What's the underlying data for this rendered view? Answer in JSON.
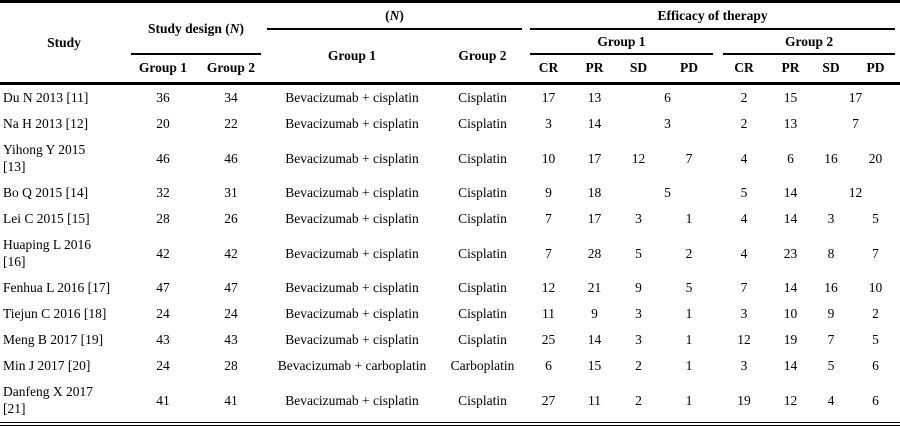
{
  "table": {
    "headers": {
      "study": "Study",
      "study_design": {
        "pre": "Study design (",
        "n": "N",
        "post": ")"
      },
      "n_group": {
        "pre": "(",
        "n": "N",
        "post": ")"
      },
      "efficacy": "Efficacy of therapy",
      "group1": "Group 1",
      "group2": "Group 2",
      "outcome_cols": [
        "CR",
        "PR",
        "SD",
        "PD"
      ]
    },
    "rows": [
      {
        "study": "Du N 2013 [11]",
        "design_g1": "36",
        "design_g2": "34",
        "drug_g1": "Bevacizumab + cisplatin",
        "drug_g2": "Cisplatin",
        "g1": [
          {
            "v": "17"
          },
          {
            "v": "13"
          },
          {
            "v": "6",
            "span": 2
          }
        ],
        "g2": [
          {
            "v": "2"
          },
          {
            "v": "15"
          },
          {
            "v": "17",
            "span": 2
          }
        ]
      },
      {
        "study": "Na H 2013 [12]",
        "design_g1": "20",
        "design_g2": "22",
        "drug_g1": "Bevacizumab + cisplatin",
        "drug_g2": "Cisplatin",
        "g1": [
          {
            "v": "3"
          },
          {
            "v": "14"
          },
          {
            "v": "3",
            "span": 2
          }
        ],
        "g2": [
          {
            "v": "2"
          },
          {
            "v": "13"
          },
          {
            "v": "7",
            "span": 2
          }
        ]
      },
      {
        "study": "Yihong Y 2015\n[13]",
        "design_g1": "46",
        "design_g2": "46",
        "drug_g1": "Bevacizumab + cisplatin",
        "drug_g2": "Cisplatin",
        "g1": [
          {
            "v": "10"
          },
          {
            "v": "17"
          },
          {
            "v": "12"
          },
          {
            "v": "7"
          }
        ],
        "g2": [
          {
            "v": "4"
          },
          {
            "v": "6"
          },
          {
            "v": "16"
          },
          {
            "v": "20"
          }
        ]
      },
      {
        "study": "Bo Q 2015 [14]",
        "design_g1": "32",
        "design_g2": "31",
        "drug_g1": "Bevacizumab + cisplatin",
        "drug_g2": "Cisplatin",
        "g1": [
          {
            "v": "9"
          },
          {
            "v": "18"
          },
          {
            "v": "5",
            "span": 2
          }
        ],
        "g2": [
          {
            "v": "5"
          },
          {
            "v": "14"
          },
          {
            "v": "12",
            "span": 2
          }
        ]
      },
      {
        "study": "Lei C 2015 [15]",
        "design_g1": "28",
        "design_g2": "26",
        "drug_g1": "Bevacizumab + cisplatin",
        "drug_g2": "Cisplatin",
        "g1": [
          {
            "v": "7"
          },
          {
            "v": "17"
          },
          {
            "v": "3"
          },
          {
            "v": "1"
          }
        ],
        "g2": [
          {
            "v": "4"
          },
          {
            "v": "14"
          },
          {
            "v": "3"
          },
          {
            "v": "5"
          }
        ]
      },
      {
        "study": "Huaping L 2016\n[16]",
        "design_g1": "42",
        "design_g2": "42",
        "drug_g1": "Bevacizumab + cisplatin",
        "drug_g2": "Cisplatin",
        "g1": [
          {
            "v": "7"
          },
          {
            "v": "28"
          },
          {
            "v": "5"
          },
          {
            "v": "2"
          }
        ],
        "g2": [
          {
            "v": "4"
          },
          {
            "v": "23"
          },
          {
            "v": "8"
          },
          {
            "v": "7"
          }
        ]
      },
      {
        "study": "Fenhua L 2016 [17]",
        "design_g1": "47",
        "design_g2": "47",
        "drug_g1": "Bevacizumab + cisplatin",
        "drug_g2": "Cisplatin",
        "g1": [
          {
            "v": "12"
          },
          {
            "v": "21"
          },
          {
            "v": "9"
          },
          {
            "v": "5"
          }
        ],
        "g2": [
          {
            "v": "7"
          },
          {
            "v": "14"
          },
          {
            "v": "16"
          },
          {
            "v": "10"
          }
        ]
      },
      {
        "study": "Tiejun C 2016 [18]",
        "design_g1": "24",
        "design_g2": "24",
        "drug_g1": "Bevacizumab + cisplatin",
        "drug_g2": "Cisplatin",
        "g1": [
          {
            "v": "11"
          },
          {
            "v": "9"
          },
          {
            "v": "3"
          },
          {
            "v": "1"
          }
        ],
        "g2": [
          {
            "v": "3"
          },
          {
            "v": "10"
          },
          {
            "v": "9"
          },
          {
            "v": "2"
          }
        ]
      },
      {
        "study": "Meng B 2017 [19]",
        "design_g1": "43",
        "design_g2": "43",
        "drug_g1": "Bevacizumab + cisplatin",
        "drug_g2": "Cisplatin",
        "g1": [
          {
            "v": "25"
          },
          {
            "v": "14"
          },
          {
            "v": "3"
          },
          {
            "v": "1"
          }
        ],
        "g2": [
          {
            "v": "12"
          },
          {
            "v": "19"
          },
          {
            "v": "7"
          },
          {
            "v": "5"
          }
        ]
      },
      {
        "study": "Min J 2017 [20]",
        "design_g1": "24",
        "design_g2": "28",
        "drug_g1": "Bevacizumab + carboplatin",
        "drug_g2": "Carboplatin",
        "g1": [
          {
            "v": "6"
          },
          {
            "v": "15"
          },
          {
            "v": "2"
          },
          {
            "v": "1"
          }
        ],
        "g2": [
          {
            "v": "3"
          },
          {
            "v": "14"
          },
          {
            "v": "5"
          },
          {
            "v": "6"
          }
        ]
      },
      {
        "study": "Danfeng X 2017\n[21]",
        "design_g1": "41",
        "design_g2": "41",
        "drug_g1": "Bevacizumab + cisplatin",
        "drug_g2": "Cisplatin",
        "g1": [
          {
            "v": "27"
          },
          {
            "v": "11"
          },
          {
            "v": "2"
          },
          {
            "v": "1"
          }
        ],
        "g2": [
          {
            "v": "19"
          },
          {
            "v": "12"
          },
          {
            "v": "4"
          },
          {
            "v": "6"
          }
        ]
      }
    ]
  }
}
